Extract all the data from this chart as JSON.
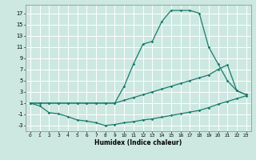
{
  "xlabel": "Humidex (Indice chaleur)",
  "bg_color": "#cce8e0",
  "grid_color": "#ffffff",
  "line_color": "#1a7a6e",
  "xlim": [
    -0.5,
    23.5
  ],
  "ylim": [
    -4,
    18.5
  ],
  "xticks": [
    0,
    1,
    2,
    3,
    4,
    5,
    6,
    7,
    8,
    9,
    10,
    11,
    12,
    13,
    14,
    15,
    16,
    17,
    18,
    19,
    20,
    21,
    22,
    23
  ],
  "yticks": [
    -3,
    -1,
    1,
    3,
    5,
    7,
    9,
    11,
    13,
    15,
    17
  ],
  "line1_x": [
    0,
    1,
    2,
    3,
    4,
    5,
    6,
    7,
    8,
    9,
    10,
    11,
    12,
    13,
    14,
    15,
    16,
    17,
    18,
    19,
    20,
    21,
    22,
    23
  ],
  "line1_y": [
    1,
    0.5,
    -0.7,
    -0.9,
    -1.4,
    -2.0,
    -2.2,
    -2.5,
    -3.0,
    -2.8,
    -2.5,
    -2.3,
    -2.0,
    -1.8,
    -1.5,
    -1.2,
    -0.9,
    -0.6,
    -0.3,
    0.2,
    0.8,
    1.3,
    1.8,
    2.3
  ],
  "line2_x": [
    0,
    1,
    2,
    3,
    4,
    5,
    6,
    7,
    8,
    9,
    10,
    11,
    12,
    13,
    14,
    15,
    16,
    17,
    18,
    19,
    20,
    21,
    22,
    23
  ],
  "line2_y": [
    1,
    1.0,
    1.0,
    1.0,
    1.0,
    1.0,
    1.0,
    1.0,
    1.0,
    1.0,
    1.5,
    2.0,
    2.5,
    3.0,
    3.5,
    4.0,
    4.5,
    5.0,
    5.5,
    6.0,
    7.0,
    7.8,
    3.2,
    2.5
  ],
  "line3_x": [
    0,
    1,
    2,
    3,
    4,
    5,
    6,
    7,
    8,
    9,
    10,
    11,
    12,
    13,
    14,
    15,
    16,
    17,
    18,
    19,
    20,
    21,
    22,
    23
  ],
  "line3_y": [
    1,
    1.0,
    1.0,
    1.0,
    1.0,
    1.0,
    1.0,
    1.0,
    1.0,
    1.0,
    4.0,
    8.0,
    11.5,
    12.0,
    15.5,
    17.5,
    17.5,
    17.5,
    17.0,
    11.0,
    8.0,
    5.0,
    3.2,
    2.5
  ]
}
